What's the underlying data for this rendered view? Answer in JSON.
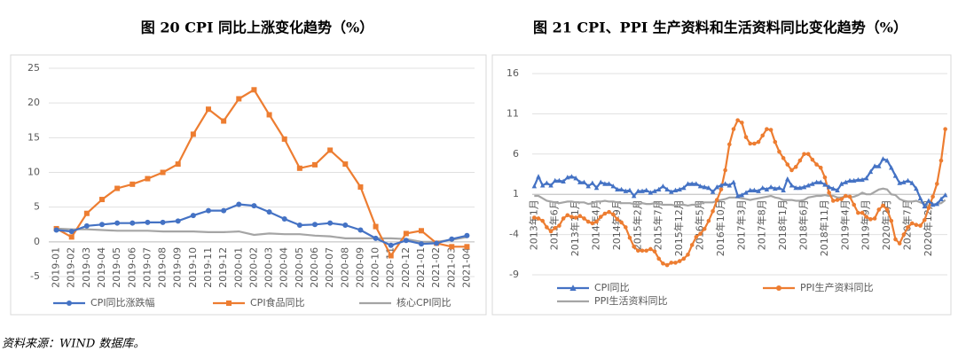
{
  "chart_data": [
    {
      "type": "line",
      "title": "图 20 CPI 同比上涨变化趋势（%）",
      "categories": [
        "2019-01",
        "2019-02",
        "2019-03",
        "2019-04",
        "2019-05",
        "2019-06",
        "2019-07",
        "2019-08",
        "2019-09",
        "2019-10",
        "2019-11",
        "2019-12",
        "2020-01",
        "2020-02",
        "2020-03",
        "2020-04",
        "2020-05",
        "2020-06",
        "2020-07",
        "2020-08",
        "2020-09",
        "2020-10",
        "2020-11",
        "2020-12",
        "2021-01",
        "2021-02",
        "2021-03",
        "2021-04"
      ],
      "series": [
        {
          "name": "CPI同比涨跌幅",
          "color": "#4472c4",
          "marker": "circle",
          "values": [
            1.7,
            1.5,
            2.3,
            2.5,
            2.7,
            2.7,
            2.8,
            2.8,
            3.0,
            3.8,
            4.5,
            4.5,
            5.4,
            5.2,
            4.3,
            3.3,
            2.4,
            2.5,
            2.7,
            2.4,
            1.7,
            0.5,
            -0.5,
            0.2,
            -0.3,
            -0.2,
            0.4,
            0.9
          ]
        },
        {
          "name": "CPI食品同比",
          "color": "#ed7d31",
          "marker": "square",
          "values": [
            1.9,
            0.7,
            4.1,
            6.1,
            7.7,
            8.3,
            9.1,
            10.0,
            11.2,
            15.5,
            19.1,
            17.4,
            20.6,
            21.9,
            18.3,
            14.8,
            10.6,
            11.1,
            13.2,
            11.2,
            7.9,
            2.2,
            -2.0,
            1.2,
            1.6,
            -0.2,
            -0.7,
            -0.7
          ]
        },
        {
          "name": "核心CPI同比",
          "color": "#a5a5a5",
          "marker": "none",
          "values": [
            1.9,
            1.8,
            1.8,
            1.7,
            1.6,
            1.6,
            1.6,
            1.5,
            1.5,
            1.5,
            1.4,
            1.4,
            1.5,
            1.0,
            1.2,
            1.1,
            1.1,
            0.9,
            0.8,
            0.5,
            0.5,
            0.5,
            0.5,
            0.4,
            0.0,
            0.0,
            0.3,
            0.7
          ]
        }
      ],
      "ylim": [
        -5,
        25
      ],
      "yticks": [
        -5,
        0,
        5,
        10,
        15,
        20,
        25
      ],
      "legend": "bottom"
    },
    {
      "type": "line",
      "title": "图 21 CPI、PPI 生产资料和生活资料同比变化趋势（%）",
      "categories": [
        "2013年1月",
        null,
        null,
        null,
        null,
        "2013年6月",
        null,
        null,
        null,
        null,
        "2013年11月",
        null,
        null,
        null,
        null,
        "2014年4月",
        null,
        null,
        null,
        null,
        "2014年9月",
        null,
        null,
        null,
        null,
        "2015年2月",
        null,
        null,
        null,
        null,
        "2015年7月",
        null,
        null,
        null,
        null,
        "2015年12月",
        null,
        null,
        null,
        null,
        "2016年5月",
        null,
        null,
        null,
        null,
        "2016年10月",
        null,
        null,
        null,
        null,
        "2017年3月",
        null,
        null,
        null,
        null,
        "2017年8月",
        null,
        null,
        null,
        null,
        "2018年1月",
        null,
        null,
        null,
        null,
        "2018年6月",
        null,
        null,
        null,
        null,
        "2018年11月",
        null,
        null,
        null,
        null,
        "2019年4月",
        null,
        null,
        null,
        null,
        "2019年9月",
        null,
        null,
        null,
        null,
        "2020年2月",
        null,
        null,
        null,
        null,
        "2020年7月",
        null,
        null,
        null,
        null,
        "2020年12月",
        null,
        null,
        null,
        null
      ],
      "series": [
        {
          "name": "CPI同比",
          "color": "#4472c4",
          "marker": "triangle",
          "values": [
            2.0,
            3.2,
            2.1,
            2.4,
            2.1,
            2.7,
            2.7,
            2.6,
            3.1,
            3.2,
            3.0,
            2.5,
            2.5,
            2.0,
            2.4,
            1.8,
            2.5,
            2.3,
            2.3,
            2.0,
            1.6,
            1.6,
            1.4,
            1.5,
            0.8,
            1.4,
            1.4,
            1.5,
            1.2,
            1.4,
            1.6,
            2.0,
            1.6,
            1.3,
            1.5,
            1.6,
            1.8,
            2.3,
            2.3,
            2.3,
            2.0,
            1.9,
            1.8,
            1.3,
            1.9,
            2.1,
            2.3,
            2.1,
            2.5,
            0.8,
            0.9,
            1.2,
            1.5,
            1.5,
            1.4,
            1.8,
            1.6,
            1.9,
            1.7,
            1.8,
            1.5,
            2.9,
            2.1,
            1.8,
            1.8,
            1.9,
            2.1,
            2.3,
            2.5,
            2.5,
            2.2,
            1.9,
            1.7,
            1.5,
            2.3,
            2.5,
            2.7,
            2.7,
            2.8,
            2.8,
            3.0,
            3.8,
            4.5,
            4.5,
            5.4,
            5.2,
            4.3,
            3.3,
            2.4,
            2.5,
            2.7,
            2.4,
            1.7,
            0.5,
            -0.5,
            0.2,
            -0.3,
            -0.2,
            0.4,
            0.9
          ]
        },
        {
          "name": "PPI生产资料同比",
          "color": "#ed7d31",
          "marker": "circle",
          "values": [
            -1.9,
            -2.0,
            -2.3,
            -3.1,
            -3.6,
            -3.2,
            -2.9,
            -2.0,
            -1.6,
            -1.8,
            -1.9,
            -1.7,
            -2.0,
            -2.4,
            -2.6,
            -2.4,
            -1.8,
            -1.4,
            -1.2,
            -1.5,
            -2.1,
            -2.5,
            -3.1,
            -4.4,
            -5.5,
            -6.0,
            -6.0,
            -6.0,
            -5.8,
            -6.1,
            -7.0,
            -7.6,
            -7.8,
            -7.5,
            -7.5,
            -7.3,
            -7.0,
            -6.5,
            -5.3,
            -4.3,
            -3.9,
            -3.3,
            -2.3,
            -1.1,
            0.3,
            1.6,
            4.0,
            7.2,
            9.1,
            10.2,
            9.9,
            8.1,
            7.3,
            7.3,
            7.5,
            8.3,
            9.1,
            9.0,
            7.5,
            6.3,
            5.5,
            4.7,
            4.0,
            4.4,
            5.2,
            6.0,
            6.0,
            5.3,
            4.7,
            4.3,
            3.1,
            1.2,
            0.2,
            0.3,
            0.4,
            0.8,
            0.7,
            -0.3,
            -1.3,
            -1.3,
            -1.8,
            -2.1,
            -2.0,
            -0.9,
            -0.4,
            -0.9,
            -2.3,
            -4.6,
            -5.1,
            -4.0,
            -3.1,
            -2.6,
            -2.8,
            -2.9,
            -2.2,
            -0.7,
            0.7,
            2.3,
            5.2,
            9.1
          ]
        },
        {
          "name": "PPI生活资料同比",
          "color": "#a5a5a5",
          "marker": "none",
          "values": [
            0.8,
            0.8,
            0.5,
            0.2,
            0.1,
            0.0,
            -0.1,
            0.0,
            0.1,
            0.1,
            0.0,
            0.0,
            0.0,
            -0.2,
            -0.1,
            0.1,
            0.1,
            0.2,
            0.1,
            0.1,
            0.0,
            -0.1,
            -0.1,
            -0.1,
            -0.2,
            -0.3,
            -0.1,
            -0.2,
            -0.2,
            -0.1,
            -0.2,
            -0.3,
            -0.3,
            -0.3,
            -0.4,
            -0.3,
            -0.3,
            -0.4,
            -0.3,
            -0.3,
            -0.2,
            0.0,
            0.0,
            0.0,
            0.2,
            0.3,
            0.4,
            0.6,
            0.6,
            0.6,
            0.5,
            0.4,
            0.3,
            0.4,
            0.5,
            0.6,
            0.7,
            0.8,
            0.6,
            0.5,
            0.3,
            0.3,
            0.3,
            0.2,
            0.2,
            0.3,
            0.6,
            0.7,
            0.8,
            0.8,
            0.9,
            0.8,
            0.8,
            0.6,
            0.6,
            0.8,
            0.6,
            0.7,
            0.9,
            1.2,
            1.0,
            1.0,
            1.3,
            1.6,
            1.7,
            1.6,
            1.0,
            0.9,
            0.4,
            0.2,
            0.1,
            0.1,
            0.2,
            0.0,
            -0.2,
            -0.4,
            -0.3,
            -0.2,
            -0.1,
            0.3
          ]
        }
      ],
      "ylim": [
        -9,
        16
      ],
      "yticks": [
        -9,
        -4,
        1,
        6,
        11,
        16
      ],
      "legend": "bottom"
    }
  ],
  "source": "资料来源：WIND 数据库。"
}
